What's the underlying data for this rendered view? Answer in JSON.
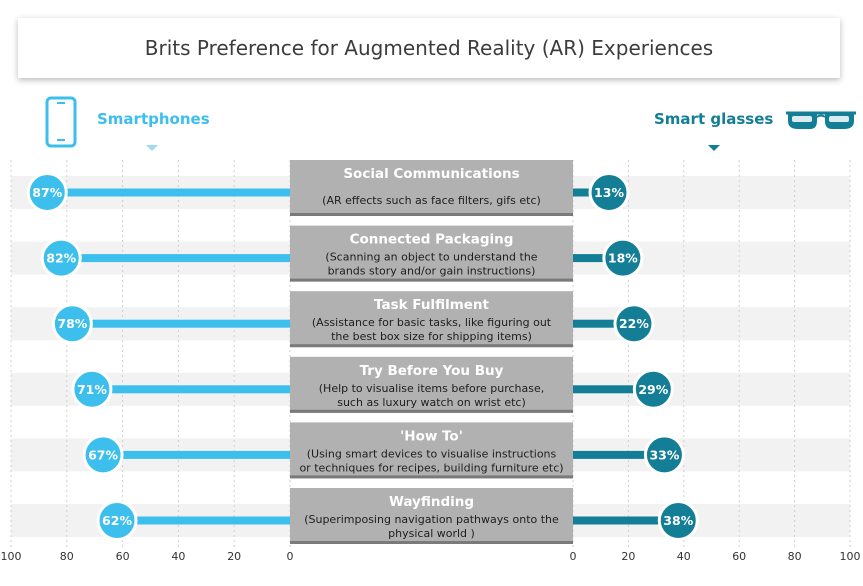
{
  "chart_data": {
    "type": "bar",
    "title": "Brits Preference for Augmented Reality (AR) Experiences",
    "left_axis_ticks": [
      100,
      80,
      60,
      40,
      20,
      0
    ],
    "right_axis_ticks": [
      0,
      20,
      40,
      60,
      80,
      100
    ],
    "xlim": [
      0,
      100
    ],
    "series": [
      {
        "name": "Smartphones",
        "color": "#3dbfee",
        "values": [
          87,
          82,
          78,
          71,
          67,
          62
        ]
      },
      {
        "name": "Smart glasses",
        "color": "#137e96",
        "values": [
          13,
          18,
          22,
          29,
          33,
          38
        ]
      }
    ],
    "categories": [
      {
        "title": "Social Communications",
        "description": [
          "(AR effects such as face filters, gifs etc)"
        ]
      },
      {
        "title": "Connected Packaging",
        "description": [
          "(Scanning an object to understand the",
          "brands story and/or gain instructions)"
        ]
      },
      {
        "title": "Task Fulfilment",
        "description": [
          "(Assistance for basic tasks, like figuring out",
          "the best box size for shipping items)"
        ]
      },
      {
        "title": "Try Before You Buy",
        "description": [
          "(Help to visualise items before purchase,",
          "such as luxury watch on wrist etc)"
        ]
      },
      {
        "title": "'How To'",
        "description": [
          "(Using smart devices to visualise instructions",
          "or techniques for recipes, building furniture etc)"
        ]
      },
      {
        "title": "Wayfinding",
        "description": [
          "(Superimposing navigation pathways onto the",
          "physical world )"
        ]
      }
    ]
  }
}
